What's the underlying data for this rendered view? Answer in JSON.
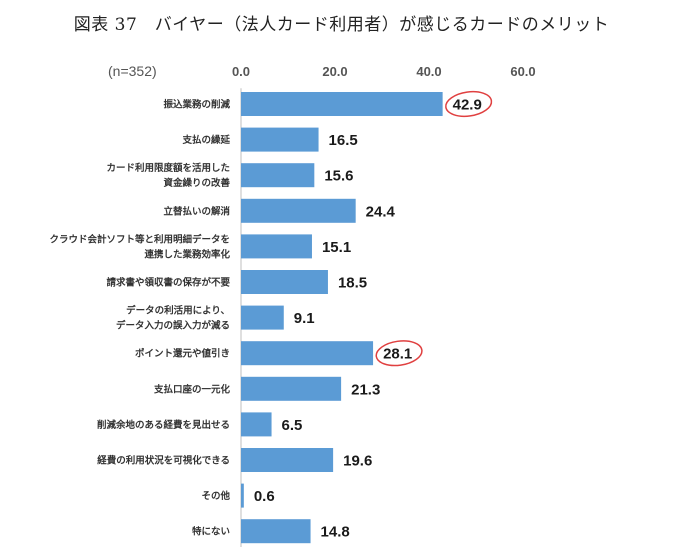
{
  "chart_data": {
    "type": "bar",
    "orientation": "horizontal",
    "title": "図表 37　バイヤー（法人カード利用者）が感じるカードのメリット",
    "sample_size_label": "(n=352)",
    "xlim": [
      0,
      60
    ],
    "ticks": [
      "0.0",
      "20.0",
      "40.0",
      "60.0"
    ],
    "tick_values": [
      0,
      20,
      40,
      60
    ],
    "grid": false,
    "legend": "none",
    "bar_color": "#5b9bd5",
    "highlight_color": "#e04040",
    "categories": [
      [
        "振込業務の削減"
      ],
      [
        "支払の繰延"
      ],
      [
        "カード利用限度額を活用した",
        "資金繰りの改善"
      ],
      [
        "立替払いの解消"
      ],
      [
        "クラウド会計ソフト等と利用明細データを",
        "連携した業務効率化"
      ],
      [
        "請求書や領収書の保存が不要"
      ],
      [
        "データの利活用により、",
        "データ入力の誤入力が減る"
      ],
      [
        "ポイント還元や値引き"
      ],
      [
        "支払口座の一元化"
      ],
      [
        "削減余地のある経費を見出せる"
      ],
      [
        "経費の利用状況を可視化できる"
      ],
      [
        "その他"
      ],
      [
        "特にない"
      ]
    ],
    "values": [
      42.9,
      16.5,
      15.6,
      24.4,
      15.1,
      18.5,
      9.1,
      28.1,
      21.3,
      6.5,
      19.6,
      0.6,
      14.8
    ],
    "value_labels": [
      "42.9",
      "16.5",
      "15.6",
      "24.4",
      "15.1",
      "18.5",
      "9.1",
      "28.1",
      "21.3",
      "6.5",
      "19.6",
      "0.6",
      "14.8"
    ],
    "highlighted": [
      "振込業務の削減",
      "ポイント還元や値引き"
    ]
  }
}
